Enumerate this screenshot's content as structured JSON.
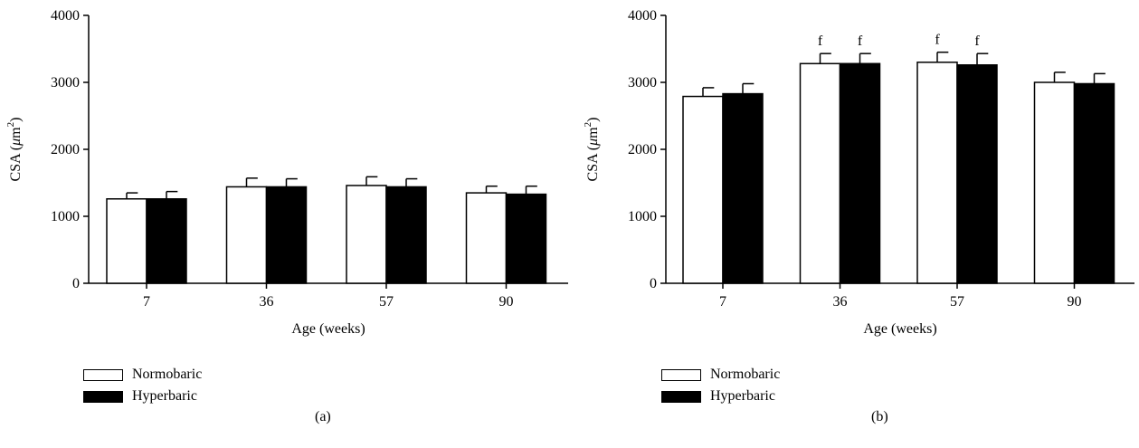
{
  "chart_data": [
    {
      "type": "bar",
      "panel_label": "(a)",
      "categories": [
        "7",
        "36",
        "57",
        "90"
      ],
      "series": [
        {
          "name": "Normobaric",
          "color": "#ffffff",
          "values": [
            1260,
            1440,
            1460,
            1350
          ],
          "errors": [
            90,
            130,
            130,
            100
          ]
        },
        {
          "name": "Hyperbaric",
          "color": "#000000",
          "values": [
            1260,
            1440,
            1440,
            1330
          ],
          "errors": [
            110,
            120,
            120,
            120
          ]
        }
      ],
      "annotations": [],
      "xlabel": "Age (weeks)",
      "ylabel_prefix": "CSA (",
      "ylabel_mu": "μ",
      "ylabel_unit": "m",
      "ylabel_exp": "2",
      "ylabel_suffix": ")",
      "ylim": [
        0,
        4000
      ],
      "yticks": [
        "0",
        "1000",
        "2000",
        "3000",
        "4000"
      ],
      "legend": "bottom-left"
    },
    {
      "type": "bar",
      "panel_label": "(b)",
      "categories": [
        "7",
        "36",
        "57",
        "90"
      ],
      "series": [
        {
          "name": "Normobaric",
          "color": "#ffffff",
          "values": [
            2790,
            3280,
            3300,
            3000
          ],
          "errors": [
            130,
            150,
            150,
            150
          ]
        },
        {
          "name": "Hyperbaric",
          "color": "#000000",
          "values": [
            2830,
            3280,
            3260,
            2980
          ],
          "errors": [
            150,
            150,
            170,
            150
          ]
        }
      ],
      "annotations": [
        {
          "category": 1,
          "series": 0,
          "text": "f"
        },
        {
          "category": 1,
          "series": 1,
          "text": "f"
        },
        {
          "category": 2,
          "series": 0,
          "text": "f"
        },
        {
          "category": 2,
          "series": 1,
          "text": "f"
        }
      ],
      "xlabel": "Age (weeks)",
      "ylabel_prefix": "CSA (",
      "ylabel_mu": "μ",
      "ylabel_unit": "m",
      "ylabel_exp": "2",
      "ylabel_suffix": ")",
      "ylim": [
        0,
        4000
      ],
      "yticks": [
        "0",
        "1000",
        "2000",
        "3000",
        "4000"
      ],
      "legend": "bottom-left"
    }
  ]
}
